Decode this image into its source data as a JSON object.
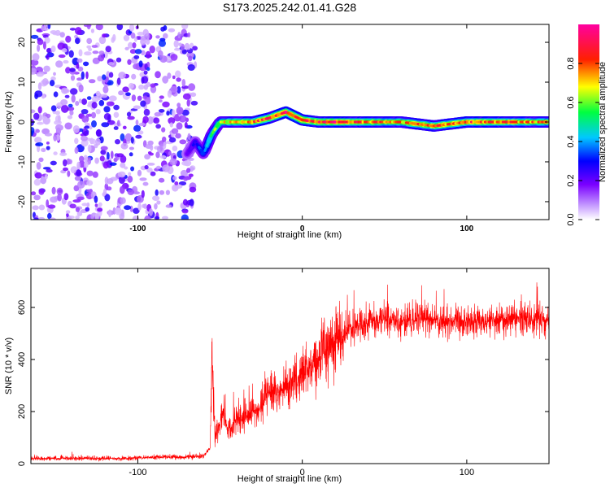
{
  "title": "S173.2025.242.01.41.G28",
  "chart_data": [
    {
      "type": "heatmap",
      "title": "S173.2025.242.01.41.G28",
      "xlabel": "Height of straight line (km)",
      "ylabel": "Frequency (Hz)",
      "xlim": [
        -165,
        150
      ],
      "ylim": [
        -24.5,
        24.5
      ],
      "xticks": [
        -100,
        0,
        100
      ],
      "xtick_labels": [
        "-100",
        "0",
        "100"
      ],
      "yticks": [
        -20,
        -10,
        0,
        10,
        20
      ],
      "ytick_labels": [
        "-20",
        "-10",
        "0",
        "10",
        "20"
      ],
      "noise_region_x": [
        -165,
        -65
      ],
      "ridge": {
        "x": [
          -70,
          -65,
          -60,
          -55,
          -50,
          -40,
          -30,
          -20,
          -10,
          0,
          10,
          20,
          40,
          60,
          80,
          100,
          120,
          150
        ],
        "frequency": [
          -8,
          -5,
          -8,
          -3,
          0,
          0,
          0,
          1,
          2.5,
          0.5,
          0,
          0,
          0,
          0,
          -1,
          0,
          0,
          0
        ],
        "amplitude": [
          0.2,
          0.3,
          0.4,
          0.6,
          0.7,
          0.8,
          0.85,
          0.9,
          0.95,
          0.95,
          0.9,
          0.95,
          0.85,
          0.8,
          0.85,
          0.9,
          0.85,
          0.8
        ]
      },
      "colorbar": {
        "label": "Normalized spectral amplitude",
        "range": [
          0,
          1
        ],
        "ticks": [
          0.0,
          0.2,
          0.4,
          0.6,
          0.8
        ],
        "tick_labels": [
          "0.0",
          "0.2",
          "0.4",
          "0.6",
          "0.8"
        ],
        "colors": [
          "#ffffff",
          "#a050ff",
          "#0000ff",
          "#00ffff",
          "#00ff00",
          "#ffff00",
          "#ff0000",
          "#ff00ff"
        ]
      }
    },
    {
      "type": "line",
      "xlabel": "Height of straight line (km)",
      "ylabel": "SNR (10 * v/v)",
      "xlim": [
        -165,
        150
      ],
      "ylim": [
        0,
        750
      ],
      "xticks": [
        -100,
        0,
        100
      ],
      "xtick_labels": [
        "-100",
        "0",
        "100"
      ],
      "yticks": [
        0,
        200,
        400,
        600
      ],
      "ytick_labels": [
        "0",
        "200",
        "400",
        "600"
      ],
      "line_color": "#ff0000",
      "series": [
        {
          "name": "SNR",
          "x": [
            -165,
            -150,
            -130,
            -110,
            -90,
            -70,
            -60,
            -56,
            -55,
            -53,
            -50,
            -48,
            -45,
            -40,
            -35,
            -30,
            -25,
            -20,
            -15,
            -10,
            -5,
            0,
            5,
            10,
            15,
            20,
            25,
            30,
            40,
            50,
            60,
            70,
            80,
            90,
            100,
            110,
            120,
            130,
            140,
            150
          ],
          "y": [
            20,
            20,
            20,
            20,
            25,
            25,
            30,
            60,
            400,
            100,
            150,
            200,
            120,
            180,
            180,
            200,
            220,
            280,
            260,
            300,
            320,
            330,
            370,
            400,
            440,
            470,
            490,
            520,
            540,
            560,
            550,
            560,
            555,
            545,
            550,
            545,
            550,
            560,
            555,
            550
          ]
        }
      ]
    }
  ]
}
